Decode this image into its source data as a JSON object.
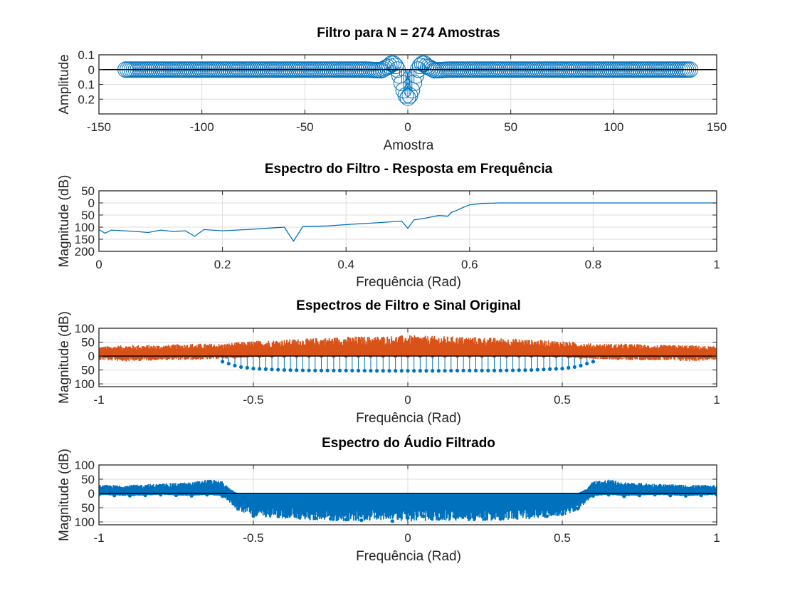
{
  "chart_data": [
    {
      "type": "scatter",
      "style": "stem",
      "title": "Filtro para N = 274 Amostras",
      "xlabel": "Amostra",
      "ylabel": "Amplitude",
      "xlim": [
        -150,
        150
      ],
      "ylim": [
        -0.3,
        0.1
      ],
      "xticks": [
        -150,
        -100,
        -50,
        0,
        50,
        100,
        150
      ],
      "yticks": [
        0.1,
        0,
        -0.1,
        -0.2
      ],
      "yticklabels": [
        "0.1",
        "0",
        "0.1",
        "0.2"
      ],
      "grid": true,
      "series": [
        {
          "color": "#0072BD",
          "marker": "open-circle",
          "x_range": [
            -137,
            137
          ],
          "points": [
            {
              "x": -137,
              "y": 0.0
            },
            {
              "x": -100,
              "y": 0.0
            },
            {
              "x": -50,
              "y": 0.0
            },
            {
              "x": -20,
              "y": 0.0
            },
            {
              "x": -13,
              "y": -0.005
            },
            {
              "x": -11,
              "y": 0.01
            },
            {
              "x": -9,
              "y": 0.025
            },
            {
              "x": -8,
              "y": 0.04
            },
            {
              "x": -7,
              "y": 0.04
            },
            {
              "x": -6,
              "y": 0.025
            },
            {
              "x": -5,
              "y": 0.0
            },
            {
              "x": -4,
              "y": -0.04
            },
            {
              "x": -3,
              "y": -0.09
            },
            {
              "x": -2,
              "y": -0.14
            },
            {
              "x": -1,
              "y": -0.175
            },
            {
              "x": 0,
              "y": -0.19
            },
            {
              "x": 1,
              "y": -0.175
            },
            {
              "x": 2,
              "y": -0.14
            },
            {
              "x": 3,
              "y": -0.09
            },
            {
              "x": 4,
              "y": -0.04
            },
            {
              "x": 5,
              "y": 0.0
            },
            {
              "x": 6,
              "y": 0.025
            },
            {
              "x": 7,
              "y": 0.04
            },
            {
              "x": 8,
              "y": 0.04
            },
            {
              "x": 9,
              "y": 0.025
            },
            {
              "x": 11,
              "y": 0.01
            },
            {
              "x": 13,
              "y": -0.005
            },
            {
              "x": 20,
              "y": 0.0
            },
            {
              "x": 50,
              "y": 0.0
            },
            {
              "x": 100,
              "y": 0.0
            },
            {
              "x": 137,
              "y": 0.0
            }
          ]
        }
      ]
    },
    {
      "type": "line",
      "title": "Espectro do Filtro - Resposta em Frequência",
      "xlabel": "Frequência (Rad)",
      "ylabel": "Magnitude (dB)",
      "xlim": [
        0,
        1
      ],
      "ylim": [
        -200,
        50
      ],
      "xticks": [
        0,
        0.2,
        0.4,
        0.6,
        0.8,
        1
      ],
      "yticks": [
        50,
        0,
        -50,
        -100,
        -150,
        -200
      ],
      "yticklabels": [
        "50",
        "0",
        "50",
        "100",
        "150",
        "200"
      ],
      "grid": true,
      "series": [
        {
          "color": "#0072BD",
          "x": [
            0,
            0.01,
            0.02,
            0.04,
            0.06,
            0.08,
            0.1,
            0.12,
            0.14,
            0.155,
            0.17,
            0.2,
            0.24,
            0.27,
            0.3,
            0.315,
            0.33,
            0.37,
            0.41,
            0.45,
            0.49,
            0.5,
            0.51,
            0.53,
            0.55,
            0.565,
            0.57,
            0.58,
            0.59,
            0.6,
            0.62,
            0.65,
            0.7,
            0.8,
            0.9,
            1.0
          ],
          "y": [
            -110,
            -125,
            -112,
            -115,
            -118,
            -122,
            -112,
            -118,
            -115,
            -138,
            -110,
            -115,
            -110,
            -105,
            -100,
            -158,
            -98,
            -95,
            -88,
            -82,
            -75,
            -105,
            -70,
            -62,
            -52,
            -55,
            -40,
            -30,
            -18,
            -8,
            -2,
            0,
            0,
            0,
            0,
            0
          ]
        }
      ]
    },
    {
      "type": "scatter",
      "style": "stem",
      "title": "Espectros de Filtro e Sinal Original",
      "xlabel": "Frequência (Rad)",
      "ylabel": "Magnitude (dB)",
      "xlim": [
        -1,
        1
      ],
      "ylim": [
        -110,
        100
      ],
      "xticks": [
        -1,
        -0.5,
        0,
        0.5,
        1
      ],
      "yticks": [
        100,
        50,
        0,
        -50,
        -100
      ],
      "yticklabels": [
        "100",
        "50",
        "0",
        "50",
        "100"
      ],
      "grid": true,
      "series": [
        {
          "color": "#D95319",
          "x": [
            -1.0,
            -0.9,
            -0.8,
            -0.7,
            -0.6,
            -0.5,
            -0.4,
            -0.3,
            -0.2,
            -0.1,
            0.0,
            0.1,
            0.2,
            0.3,
            0.4,
            0.5,
            0.6,
            0.7,
            0.8,
            0.9,
            1.0
          ],
          "y_max": [
            35,
            40,
            40,
            45,
            45,
            55,
            60,
            65,
            70,
            72,
            75,
            72,
            70,
            65,
            60,
            55,
            45,
            45,
            40,
            40,
            35
          ],
          "y_min": [
            -15,
            -20,
            -15,
            -15,
            -10,
            -5,
            0,
            0,
            0,
            0,
            0,
            0,
            0,
            0,
            0,
            -5,
            -10,
            -15,
            -15,
            -20,
            -15
          ]
        },
        {
          "color": "#0072BD",
          "x": [
            -0.6,
            -0.55,
            -0.5,
            -0.4,
            -0.3,
            -0.2,
            -0.1,
            0.0,
            0.1,
            0.2,
            0.3,
            0.4,
            0.5,
            0.55,
            0.6
          ],
          "y": [
            -20,
            -38,
            -45,
            -50,
            -52,
            -52,
            -53,
            -53,
            -53,
            -52,
            -52,
            -50,
            -45,
            -38,
            -20
          ]
        }
      ]
    },
    {
      "type": "scatter",
      "style": "stem",
      "title": "Espectro do Áudio Filtrado",
      "xlabel": "Frequência (Rad)",
      "ylabel": "Magnitude (dB)",
      "xlim": [
        -1,
        1
      ],
      "ylim": [
        -110,
        100
      ],
      "xticks": [
        -1,
        -0.5,
        0,
        0.5,
        1
      ],
      "yticks": [
        100,
        50,
        0,
        -50,
        -100
      ],
      "yticklabels": [
        "100",
        "50",
        "0",
        "50",
        "100"
      ],
      "grid": true,
      "series": [
        {
          "color": "#0072BD",
          "x": [
            -1.0,
            -0.9,
            -0.8,
            -0.7,
            -0.65,
            -0.6,
            -0.58,
            -0.55,
            -0.5,
            -0.4,
            -0.3,
            -0.2,
            -0.1,
            0.0,
            0.1,
            0.2,
            0.3,
            0.4,
            0.5,
            0.55,
            0.58,
            0.6,
            0.65,
            0.7,
            0.8,
            0.9,
            1.0
          ],
          "y_max": [
            30,
            30,
            35,
            40,
            50,
            45,
            20,
            0,
            0,
            0,
            0,
            0,
            0,
            0,
            0,
            0,
            0,
            0,
            0,
            0,
            20,
            45,
            50,
            40,
            35,
            30,
            30
          ],
          "y_min": [
            -5,
            -10,
            -5,
            -10,
            -5,
            -10,
            -30,
            -60,
            -80,
            -90,
            -95,
            -100,
            -95,
            -100,
            -95,
            -100,
            -95,
            -90,
            -80,
            -60,
            -30,
            -10,
            -5,
            -10,
            -5,
            -10,
            -5
          ]
        }
      ]
    }
  ]
}
